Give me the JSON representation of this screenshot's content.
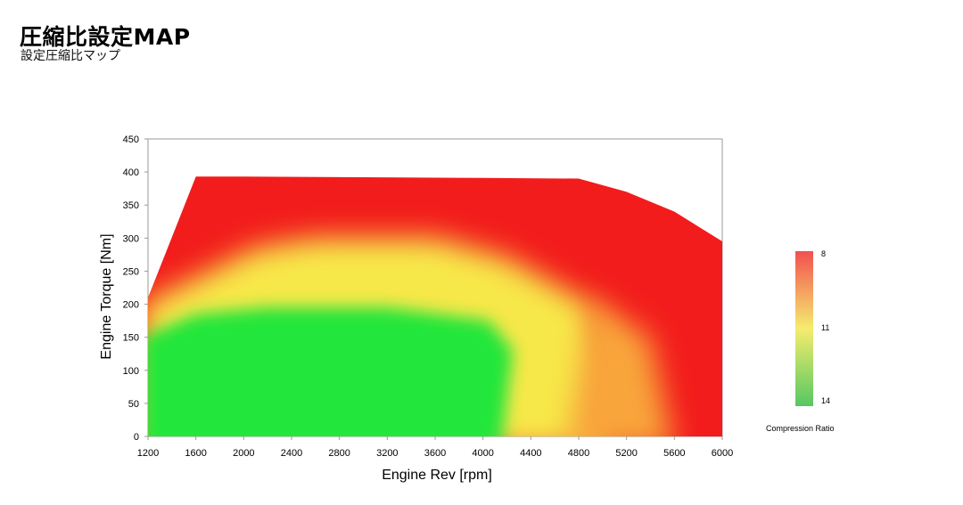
{
  "header": {
    "title": "圧縮比設定MAP",
    "subtitle": "設定圧縮比マップ"
  },
  "colors": {
    "high_ratio": "#22e63a",
    "mid_ratio": "#f7e84a",
    "low_ratio": "#f21c1c",
    "frame": "#9a9a9a"
  },
  "chart_data": {
    "type": "heatmap",
    "title": "",
    "xlabel": "Engine Rev [rpm]",
    "ylabel": "Engine Torque [Nm]",
    "xlim": [
      1200,
      6000
    ],
    "ylim": [
      0,
      450
    ],
    "x_ticks": [
      "1200",
      "1600",
      "2000",
      "2400",
      "2800",
      "3200",
      "3600",
      "4000",
      "4400",
      "4800",
      "5200",
      "5600",
      "6000"
    ],
    "y_ticks": [
      "0",
      "50",
      "100",
      "150",
      "200",
      "250",
      "300",
      "350",
      "400",
      "450"
    ],
    "max_torque_curve": {
      "rpm": [
        1200,
        1600,
        2000,
        3000,
        4000,
        4800,
        5200,
        5600,
        6000
      ],
      "torque": [
        210,
        393,
        393,
        392,
        391,
        390,
        370,
        340,
        295
      ]
    },
    "zones": [
      {
        "compression_ratio": 14,
        "region": "low-mid torque, 1200-4000 rpm (up to ~190-200 Nm)"
      },
      {
        "compression_ratio": 11,
        "region": "transition band ~200-230 Nm and near 4600-4800 rpm"
      },
      {
        "compression_ratio": 8,
        "region": "high torque above ~260 Nm and high rpm above ~5200"
      }
    ],
    "colorbar": {
      "label": "Compression Ratio",
      "ticks": [
        "8",
        "11",
        "14"
      ],
      "values": [
        8,
        11,
        14
      ]
    }
  }
}
